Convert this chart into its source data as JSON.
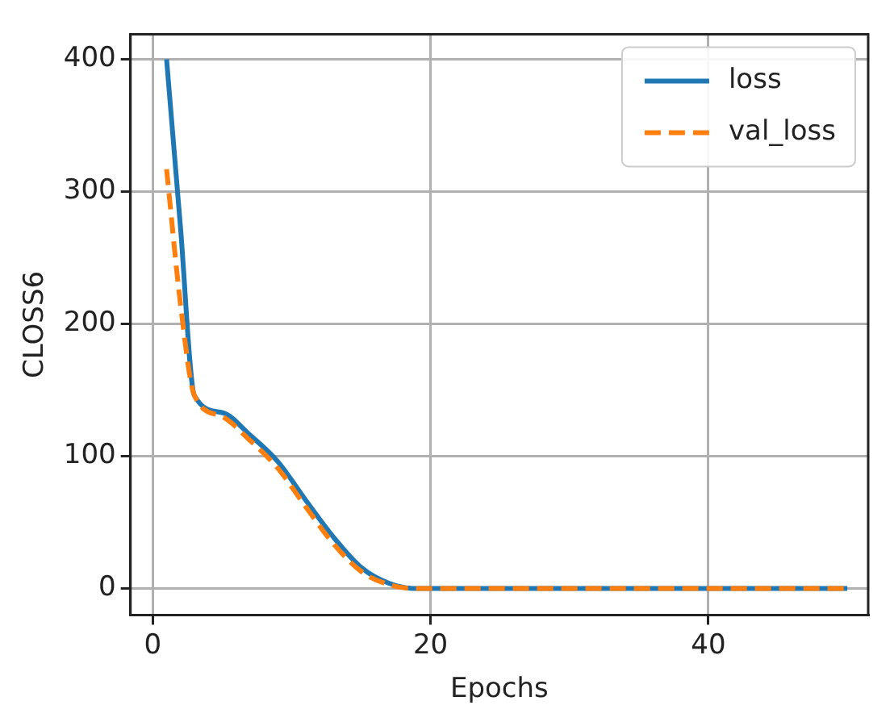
{
  "chart_data": {
    "type": "line",
    "xlabel": "Epochs",
    "ylabel": "CLOSS6",
    "xlim": [
      -1.6,
      51.5
    ],
    "ylim": [
      -20,
      419
    ],
    "xticks": [
      0,
      20,
      40
    ],
    "yticks": [
      0,
      100,
      200,
      300,
      400
    ],
    "grid": true,
    "legend": "top right",
    "marker": "none",
    "series": [
      {
        "name": "loss",
        "color": "#1f77b4",
        "line_style": "solid",
        "x": [
          1,
          2,
          3,
          5,
          7,
          9,
          11,
          13,
          15,
          17,
          19,
          20,
          25,
          30,
          35,
          40,
          45,
          50
        ],
        "values": [
          400,
          273,
          146,
          133,
          116,
          96,
          67,
          39,
          16,
          4,
          0,
          0,
          0,
          0,
          0,
          0,
          0,
          0
        ]
      },
      {
        "name": "val_loss",
        "color": "#ff7f0e",
        "line_style": "dashed",
        "x": [
          1,
          2,
          3,
          5,
          7,
          9,
          11,
          13,
          15,
          17,
          19,
          20,
          25,
          30,
          35,
          40,
          45,
          50
        ],
        "values": [
          317,
          215,
          146,
          130,
          112,
          91,
          62,
          34,
          13,
          3,
          0,
          0,
          0,
          0,
          0,
          0,
          0,
          0
        ]
      }
    ]
  }
}
